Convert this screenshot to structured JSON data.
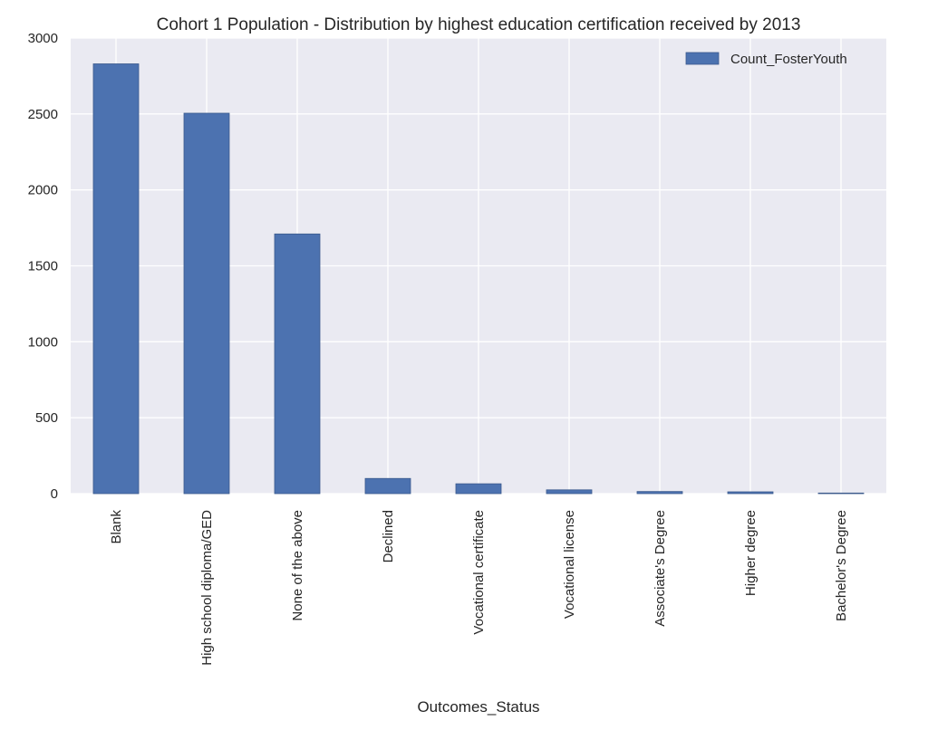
{
  "chart_data": {
    "type": "bar",
    "title": "Cohort 1 Population - Distribution by highest education certification received by 2013",
    "xlabel": "Outcomes_Status",
    "ylabel": "",
    "categories": [
      "Blank",
      "High school diploma/GED",
      "None of the above",
      "Declined",
      "Vocational certificate",
      "Vocational license",
      "Associate's Degree",
      "Higher degree",
      "Bachelor's Degree"
    ],
    "series": [
      {
        "name": "Count_FosterYouth",
        "values": [
          2830,
          2505,
          1710,
          100,
          65,
          25,
          14,
          12,
          4
        ],
        "color": "#4c72b0"
      }
    ],
    "ylim": [
      0,
      3000
    ],
    "yticks": [
      0,
      500,
      1000,
      1500,
      2000,
      2500,
      3000
    ],
    "grid": true,
    "legend_position": "top-right",
    "background_color": "#eaeaf2",
    "grid_color": "#ffffff"
  }
}
